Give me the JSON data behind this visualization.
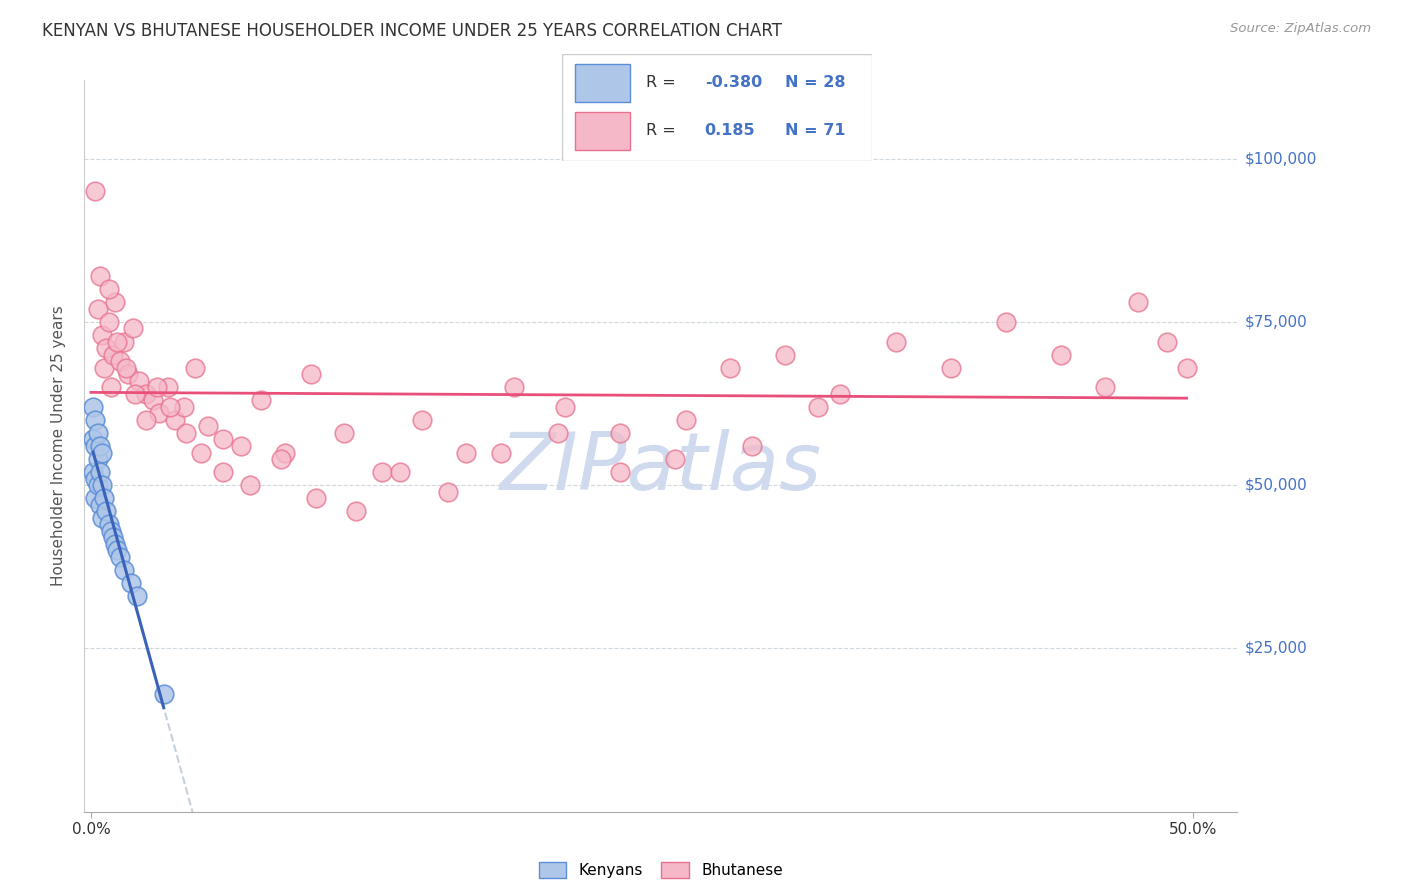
{
  "title": "KENYAN VS BHUTANESE HOUSEHOLDER INCOME UNDER 25 YEARS CORRELATION CHART",
  "source": "Source: ZipAtlas.com",
  "ylabel": "Householder Income Under 25 years",
  "kenyan_color": "#aec6e8",
  "bhutanese_color": "#f5b8c8",
  "kenyan_edge_color": "#5b8ed6",
  "bhutanese_edge_color": "#e8728e",
  "kenyan_line_color": "#3a62b8",
  "bhutanese_line_color": "#e8507a",
  "dashed_line_color": "#c0ccd8",
  "ytick_color": "#4472c4",
  "watermark_color": "#d0daee",
  "background_color": "#ffffff",
  "kenyan_x": [
    0.001,
    0.001,
    0.001,
    0.002,
    0.002,
    0.002,
    0.002,
    0.003,
    0.003,
    0.003,
    0.004,
    0.004,
    0.004,
    0.005,
    0.005,
    0.005,
    0.006,
    0.007,
    0.008,
    0.009,
    0.01,
    0.011,
    0.012,
    0.013,
    0.015,
    0.018,
    0.021,
    0.033
  ],
  "kenyan_y": [
    62000,
    57000,
    52000,
    60000,
    56000,
    51000,
    48000,
    58000,
    54000,
    50000,
    56000,
    52000,
    47000,
    55000,
    50000,
    45000,
    48000,
    46000,
    44000,
    43000,
    42000,
    41000,
    40000,
    39000,
    37000,
    35000,
    33000,
    18000
  ],
  "bhutanese_x": [
    0.002,
    0.003,
    0.004,
    0.005,
    0.006,
    0.007,
    0.008,
    0.009,
    0.01,
    0.011,
    0.013,
    0.015,
    0.017,
    0.019,
    0.022,
    0.025,
    0.028,
    0.031,
    0.035,
    0.038,
    0.042,
    0.047,
    0.053,
    0.06,
    0.068,
    0.077,
    0.088,
    0.1,
    0.115,
    0.132,
    0.15,
    0.17,
    0.192,
    0.215,
    0.24,
    0.265,
    0.29,
    0.315,
    0.34,
    0.365,
    0.39,
    0.415,
    0.44,
    0.46,
    0.475,
    0.488,
    0.497,
    0.008,
    0.012,
    0.016,
    0.02,
    0.025,
    0.03,
    0.036,
    0.043,
    0.05,
    0.06,
    0.072,
    0.086,
    0.102,
    0.12,
    0.14,
    0.162,
    0.186,
    0.212,
    0.24,
    0.27,
    0.3,
    0.33
  ],
  "bhutanese_y": [
    95000,
    77000,
    82000,
    73000,
    68000,
    71000,
    75000,
    65000,
    70000,
    78000,
    69000,
    72000,
    67000,
    74000,
    66000,
    64000,
    63000,
    61000,
    65000,
    60000,
    62000,
    68000,
    59000,
    57000,
    56000,
    63000,
    55000,
    67000,
    58000,
    52000,
    60000,
    55000,
    65000,
    62000,
    58000,
    54000,
    68000,
    70000,
    64000,
    72000,
    68000,
    75000,
    70000,
    65000,
    78000,
    72000,
    68000,
    80000,
    72000,
    68000,
    64000,
    60000,
    65000,
    62000,
    58000,
    55000,
    52000,
    50000,
    54000,
    48000,
    46000,
    52000,
    49000,
    55000,
    58000,
    52000,
    60000,
    56000,
    62000
  ],
  "xlim": [
    -0.003,
    0.52
  ],
  "ylim": [
    0,
    112000
  ],
  "yticks": [
    0,
    25000,
    50000,
    75000,
    100000
  ],
  "ytick_labels": [
    "",
    "$25,000",
    "$50,000",
    "$75,000",
    "$100,000"
  ]
}
